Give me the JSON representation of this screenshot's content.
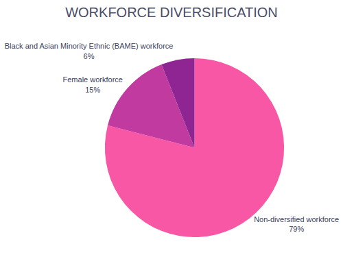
{
  "chart_data": {
    "type": "pie",
    "title": "WORKFORCE DIVERSIFICATION",
    "categories": [
      "Non-diversified workforce",
      "Female workforce",
      "Black and Asian Minority Ethnic (BAME) workforce"
    ],
    "values": [
      79,
      15,
      6
    ],
    "value_labels": [
      "79%",
      "15%",
      "6%"
    ],
    "colors": [
      "#f857a6",
      "#c03a9f",
      "#8e2592"
    ],
    "data_labels": true
  }
}
